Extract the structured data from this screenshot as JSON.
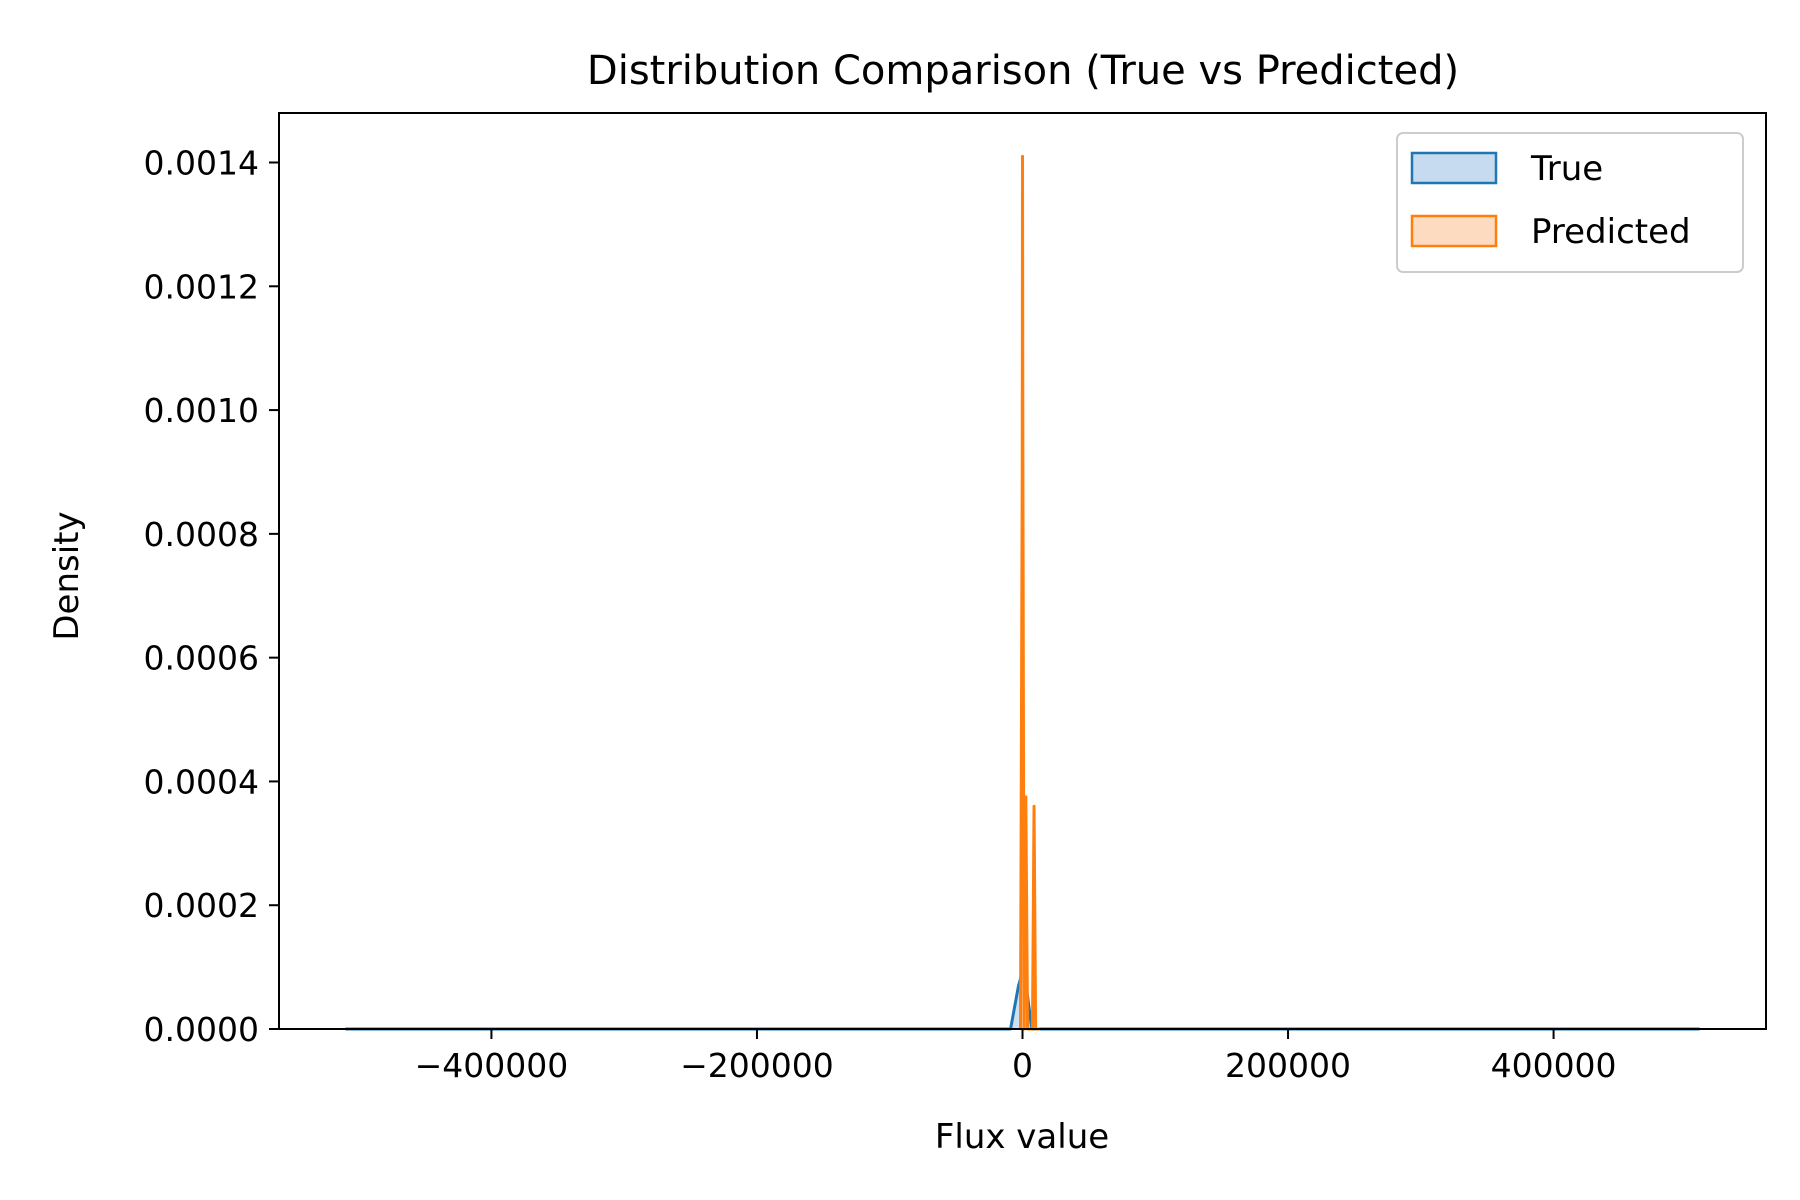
{
  "chart_data": {
    "type": "area",
    "title": "Distribution Comparison (True vs Predicted)",
    "xlabel": "Flux value",
    "ylabel": "Density",
    "xlim": [
      -560000,
      560000
    ],
    "ylim": [
      0,
      0.00148
    ],
    "x_ticks": [
      -400000,
      -200000,
      0,
      200000,
      400000
    ],
    "x_tick_labels": [
      "−400000",
      "−200000",
      "0",
      "200000",
      "400000"
    ],
    "y_ticks": [
      0,
      0.0002,
      0.0004,
      0.0006,
      0.0008,
      0.001,
      0.0012,
      0.0014
    ],
    "y_tick_labels": [
      "0.0000",
      "0.0002",
      "0.0004",
      "0.0006",
      "0.0008",
      "0.0010",
      "0.0012",
      "0.0014"
    ],
    "grid": false,
    "legend_position": "top-right",
    "series": [
      {
        "name": "True",
        "color": "#1f77b4",
        "fill": "#c6dbef",
        "x": [
          -510000,
          -9000,
          -3000,
          0,
          1500,
          4000,
          7000,
          510000
        ],
        "y": [
          0,
          0,
          7e-05,
          9.2e-05,
          9.3e-05,
          5e-05,
          0,
          0
        ]
      },
      {
        "name": "Predicted",
        "color": "#ff7f0e",
        "fill": "#fddbc1",
        "x": [
          -1500,
          -200,
          0,
          300,
          1200,
          2500,
          3800,
          5500,
          7500,
          8700,
          9900,
          11500,
          13000
        ],
        "y": [
          0,
          0.0009,
          0.00141,
          0.0009,
          0,
          0.000375,
          0,
          0,
          0,
          0.00036,
          0,
          0,
          0
        ]
      }
    ]
  }
}
